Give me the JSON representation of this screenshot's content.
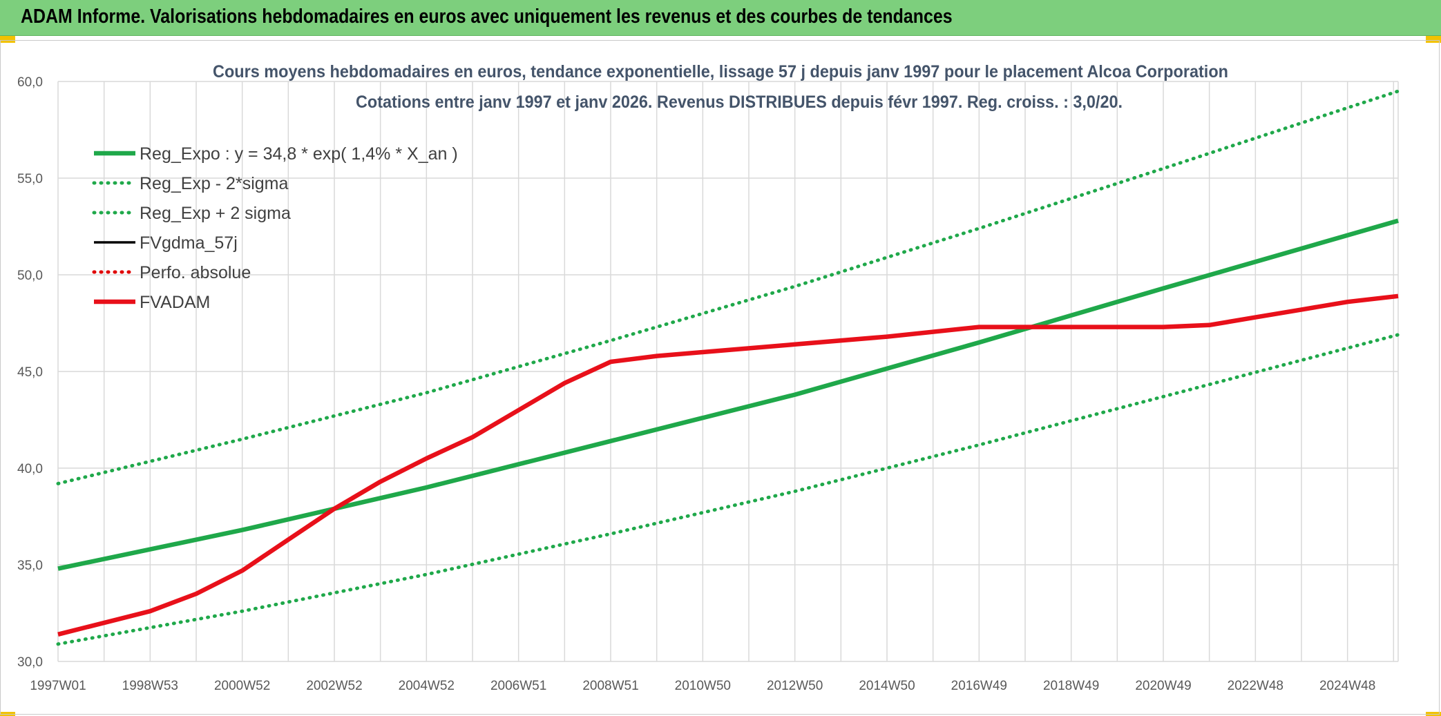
{
  "header": {
    "title": "ADAM Informe. Valorisations hebdomadaires en euros avec uniquement les revenus et des courbes de tendances"
  },
  "colors": {
    "header_bg": "#7dcf7d",
    "reg_green": "#1fa84a",
    "band_green": "#1fa84a",
    "fvgdma": "#000000",
    "perfo": "#e00000",
    "fvadam": "#e8101a",
    "grid": "#d9d9d9",
    "accent_corner": "#f2c200"
  },
  "chart_data": {
    "type": "line",
    "title": "Cours moyens hebdomadaires en euros, tendance exponentielle, lissage 57 j depuis janv 1997 pour le placement Alcoa Corporation",
    "subtitle": "Cotations entre janv 1997 et janv 2026. Revenus DISTRIBUES depuis févr 1997. Reg. croiss. : 3,0/20.",
    "xlabel": "",
    "ylabel": "",
    "x_start": 1997.0,
    "x_end": 2026.1,
    "ylim": [
      30,
      60
    ],
    "yticks": [
      "30,0",
      "35,0",
      "40,0",
      "45,0",
      "50,0",
      "55,0",
      "60,0"
    ],
    "xticks": [
      {
        "label": "1997W01",
        "year": 1997.0
      },
      {
        "label": "1998W53",
        "year": 1999.0
      },
      {
        "label": "2000W52",
        "year": 2001.0
      },
      {
        "label": "2002W52",
        "year": 2003.0
      },
      {
        "label": "2004W52",
        "year": 2005.0
      },
      {
        "label": "2006W51",
        "year": 2007.0
      },
      {
        "label": "2008W51",
        "year": 2009.0
      },
      {
        "label": "2010W50",
        "year": 2011.0
      },
      {
        "label": "2012W50",
        "year": 2013.0
      },
      {
        "label": "2014W50",
        "year": 2015.0
      },
      {
        "label": "2016W49",
        "year": 2017.0
      },
      {
        "label": "2018W49",
        "year": 2019.0
      },
      {
        "label": "2020W49",
        "year": 2021.0
      },
      {
        "label": "2022W48",
        "year": 2023.0
      },
      {
        "label": "2024W48",
        "year": 2025.0
      }
    ],
    "grid": true,
    "legend_position": "top-left",
    "series": [
      {
        "name": "Reg_Expo : y = 34,8 * exp( 1,4% *  X_an )",
        "style": "solid-thick",
        "color": "#1fa84a",
        "points": [
          [
            1997.0,
            34.8
          ],
          [
            2001.0,
            36.8
          ],
          [
            2005.0,
            39.0
          ],
          [
            2009.0,
            41.4
          ],
          [
            2013.0,
            43.8
          ],
          [
            2017.0,
            46.5
          ],
          [
            2021.0,
            49.3
          ],
          [
            2026.1,
            52.8
          ]
        ]
      },
      {
        "name": "Reg_Exp - 2*sigma",
        "style": "dotted",
        "color": "#1fa84a",
        "points": [
          [
            1997.0,
            30.9
          ],
          [
            2001.0,
            32.6
          ],
          [
            2005.0,
            34.5
          ],
          [
            2009.0,
            36.6
          ],
          [
            2013.0,
            38.8
          ],
          [
            2017.0,
            41.2
          ],
          [
            2021.0,
            43.7
          ],
          [
            2026.1,
            46.9
          ]
        ]
      },
      {
        "name": "Reg_Exp + 2 sigma",
        "style": "dotted",
        "color": "#1fa84a",
        "points": [
          [
            1997.0,
            39.2
          ],
          [
            2001.0,
            41.5
          ],
          [
            2005.0,
            43.9
          ],
          [
            2009.0,
            46.6
          ],
          [
            2013.0,
            49.4
          ],
          [
            2017.0,
            52.4
          ],
          [
            2021.0,
            55.5
          ],
          [
            2026.1,
            59.5
          ]
        ]
      },
      {
        "name": "FVgdma_57j",
        "style": "solid",
        "color": "#000000",
        "points": []
      },
      {
        "name": "Perfo. absolue",
        "style": "dotted",
        "color": "#e00000",
        "points": []
      },
      {
        "name": "FVADAM",
        "style": "solid-thick",
        "color": "#e8101a",
        "points": [
          [
            1997.0,
            31.4
          ],
          [
            1999.0,
            32.6
          ],
          [
            2000.0,
            33.5
          ],
          [
            2001.0,
            34.7
          ],
          [
            2002.0,
            36.3
          ],
          [
            2003.0,
            37.9
          ],
          [
            2004.0,
            39.3
          ],
          [
            2005.0,
            40.5
          ],
          [
            2006.0,
            41.6
          ],
          [
            2007.0,
            43.0
          ],
          [
            2008.0,
            44.4
          ],
          [
            2009.0,
            45.5
          ],
          [
            2010.0,
            45.8
          ],
          [
            2011.0,
            46.0
          ],
          [
            2013.0,
            46.4
          ],
          [
            2015.0,
            46.8
          ],
          [
            2017.0,
            47.3
          ],
          [
            2019.0,
            47.3
          ],
          [
            2021.0,
            47.3
          ],
          [
            2022.0,
            47.4
          ],
          [
            2023.0,
            47.8
          ],
          [
            2024.0,
            48.2
          ],
          [
            2025.0,
            48.6
          ],
          [
            2026.1,
            48.9
          ]
        ]
      }
    ]
  }
}
